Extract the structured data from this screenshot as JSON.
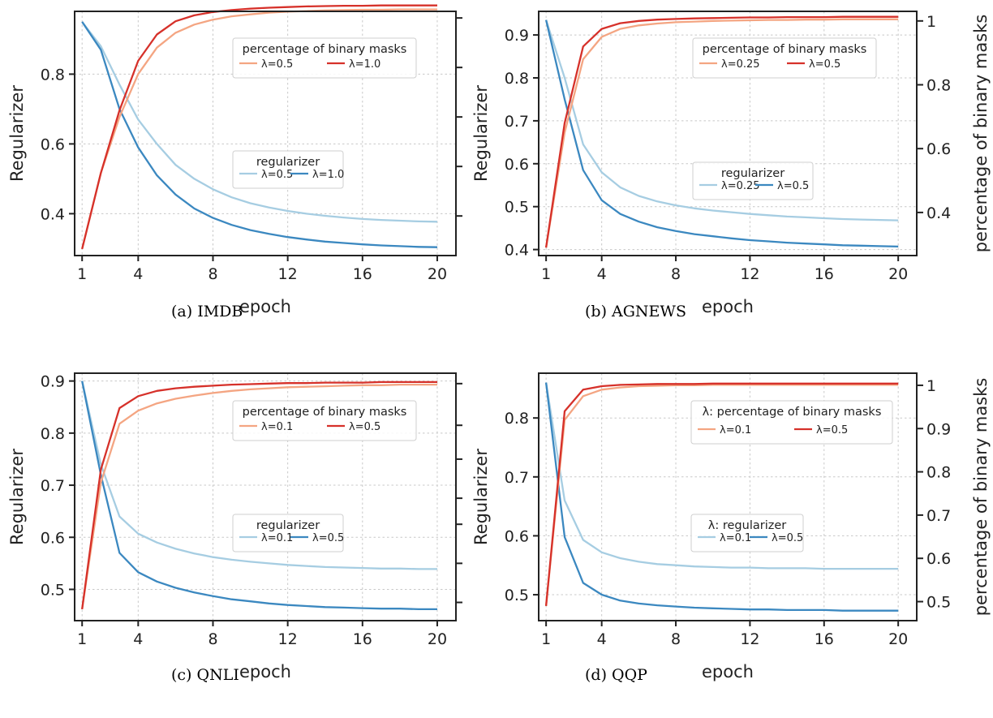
{
  "colors": {
    "reg_light": "#a6cde2",
    "reg_dark": "#3b88c0",
    "mask_light": "#f4a582",
    "mask_dark": "#d6312a"
  },
  "chart_data": [
    {
      "type": "line",
      "caption": "(a)  IMDB",
      "xlabel": "epoch",
      "ylabel": "Regularizer",
      "y2label": "",
      "xlim": [
        0.6,
        21
      ],
      "ylim": [
        0.28,
        0.98
      ],
      "y2lim": [
        0.28,
        1.02
      ],
      "x_ticks": [
        1,
        4,
        8,
        12,
        16,
        20
      ],
      "y_ticks": [
        0.4,
        0.6,
        0.8
      ],
      "y2_ticks": [
        0.4,
        0.55,
        0.7,
        0.85,
        1.0
      ],
      "y2_ticks_labeled": false,
      "x": [
        1,
        2,
        3,
        4,
        5,
        6,
        7,
        8,
        9,
        10,
        11,
        12,
        13,
        14,
        15,
        16,
        17,
        18,
        19,
        20
      ],
      "series": [
        {
          "name": "λ=0.5",
          "axis": "left",
          "color_key": "reg_light",
          "values": [
            0.95,
            0.88,
            0.77,
            0.67,
            0.6,
            0.54,
            0.5,
            0.47,
            0.447,
            0.43,
            0.418,
            0.408,
            0.4,
            0.394,
            0.389,
            0.385,
            0.382,
            0.38,
            0.378,
            0.377
          ]
        },
        {
          "name": "λ=1.0",
          "axis": "left",
          "color_key": "reg_dark",
          "values": [
            0.95,
            0.87,
            0.7,
            0.59,
            0.51,
            0.455,
            0.415,
            0.388,
            0.368,
            0.353,
            0.342,
            0.333,
            0.326,
            0.32,
            0.316,
            0.312,
            0.309,
            0.307,
            0.305,
            0.304
          ]
        },
        {
          "name": "λ=0.5",
          "axis": "right",
          "color_key": "mask_light",
          "values": [
            0.3,
            0.53,
            0.7,
            0.83,
            0.91,
            0.955,
            0.98,
            0.995,
            1.005,
            1.011,
            1.016,
            1.019,
            1.021,
            1.023,
            1.024,
            1.025,
            1.025,
            1.026,
            1.026,
            1.026
          ]
        },
        {
          "name": "λ=1.0",
          "axis": "right",
          "color_key": "mask_dark",
          "values": [
            0.3,
            0.53,
            0.72,
            0.87,
            0.95,
            0.99,
            1.008,
            1.018,
            1.024,
            1.028,
            1.031,
            1.033,
            1.035,
            1.036,
            1.037,
            1.037,
            1.038,
            1.038,
            1.038,
            1.038
          ]
        }
      ],
      "legends": [
        {
          "title": "percentage of binary masks",
          "entries": [
            "λ=0.5",
            "λ=1.0"
          ],
          "series_index": [
            2,
            3
          ]
        },
        {
          "title": "regularizer",
          "entries": [
            "λ=0.5",
            "λ=1.0"
          ],
          "series_index": [
            0,
            1
          ]
        }
      ]
    },
    {
      "type": "line",
      "caption": "(b)  AGNEWS",
      "xlabel": "epoch",
      "ylabel": "Regularizer",
      "y2label": "percentage of binary masks",
      "xlim": [
        0.6,
        21
      ],
      "ylim": [
        0.386,
        0.955
      ],
      "y2lim": [
        0.265,
        1.03
      ],
      "x_ticks": [
        1,
        4,
        8,
        12,
        16,
        20
      ],
      "y_ticks": [
        0.4,
        0.5,
        0.6,
        0.7,
        0.8,
        0.9
      ],
      "y2_ticks": [
        0.4,
        0.6,
        0.8,
        1.0
      ],
      "y2_ticks_labeled": true,
      "x": [
        1,
        2,
        3,
        4,
        5,
        6,
        7,
        8,
        9,
        10,
        11,
        12,
        13,
        14,
        15,
        16,
        17,
        18,
        19,
        20
      ],
      "series": [
        {
          "name": "λ=0.25",
          "axis": "left",
          "color_key": "reg_light",
          "values": [
            0.935,
            0.8,
            0.645,
            0.58,
            0.545,
            0.525,
            0.512,
            0.503,
            0.496,
            0.491,
            0.487,
            0.483,
            0.48,
            0.477,
            0.475,
            0.473,
            0.471,
            0.47,
            0.469,
            0.468
          ]
        },
        {
          "name": "λ=0.5",
          "axis": "left",
          "color_key": "reg_dark",
          "values": [
            0.935,
            0.75,
            0.585,
            0.515,
            0.483,
            0.465,
            0.452,
            0.443,
            0.436,
            0.431,
            0.426,
            0.422,
            0.419,
            0.416,
            0.414,
            0.412,
            0.41,
            0.409,
            0.408,
            0.407
          ]
        },
        {
          "name": "λ=0.25",
          "axis": "right",
          "color_key": "mask_light",
          "values": [
            0.29,
            0.65,
            0.88,
            0.95,
            0.975,
            0.986,
            0.992,
            0.996,
            0.998,
            1.0,
            1.001,
            1.002,
            1.003,
            1.003,
            1.004,
            1.004,
            1.005,
            1.005,
            1.005,
            1.005
          ]
        },
        {
          "name": "λ=0.5",
          "axis": "right",
          "color_key": "mask_dark",
          "values": [
            0.29,
            0.68,
            0.92,
            0.975,
            0.993,
            1.0,
            1.004,
            1.006,
            1.008,
            1.009,
            1.01,
            1.011,
            1.011,
            1.012,
            1.012,
            1.012,
            1.013,
            1.013,
            1.013,
            1.013
          ]
        }
      ],
      "legends": [
        {
          "title": "percentage of binary masks",
          "entries": [
            "λ=0.25",
            "λ=0.5"
          ],
          "series_index": [
            2,
            3
          ]
        },
        {
          "title": "regularizer",
          "entries": [
            "λ=0.25",
            "λ=0.5"
          ],
          "series_index": [
            0,
            1
          ]
        }
      ]
    },
    {
      "type": "line",
      "caption": "(c)  QNLI",
      "xlabel": "epoch",
      "ylabel": "Regularizer",
      "y2label": "",
      "xlim": [
        0.6,
        21
      ],
      "ylim": [
        0.44,
        0.915
      ],
      "y2lim": [
        0.44,
        0.915
      ],
      "x_ticks": [
        1,
        4,
        8,
        12,
        16,
        20
      ],
      "y_ticks": [
        0.5,
        0.6,
        0.7,
        0.8,
        0.9
      ],
      "y2_ticks": [
        0.475,
        0.55,
        0.625,
        0.675,
        0.75,
        0.815,
        0.895
      ],
      "y2_ticks_labeled": false,
      "x": [
        1,
        2,
        3,
        4,
        5,
        6,
        7,
        8,
        9,
        10,
        11,
        12,
        13,
        14,
        15,
        16,
        17,
        18,
        19,
        20
      ],
      "series": [
        {
          "name": "λ=0.1",
          "axis": "left",
          "color_key": "reg_light",
          "values": [
            0.9,
            0.74,
            0.64,
            0.607,
            0.59,
            0.578,
            0.569,
            0.562,
            0.557,
            0.553,
            0.55,
            0.547,
            0.545,
            0.543,
            0.542,
            0.541,
            0.54,
            0.54,
            0.539,
            0.539
          ]
        },
        {
          "name": "λ=0.5",
          "axis": "left",
          "color_key": "reg_dark",
          "values": [
            0.9,
            0.72,
            0.57,
            0.533,
            0.515,
            0.503,
            0.494,
            0.487,
            0.481,
            0.477,
            0.473,
            0.47,
            0.468,
            0.466,
            0.465,
            0.464,
            0.463,
            0.463,
            0.462,
            0.462
          ]
        },
        {
          "name": "λ=0.1",
          "axis": "right",
          "color_key": "mask_light",
          "values": [
            0.462,
            0.705,
            0.818,
            0.843,
            0.857,
            0.866,
            0.872,
            0.877,
            0.881,
            0.884,
            0.886,
            0.888,
            0.889,
            0.89,
            0.891,
            0.892,
            0.892,
            0.893,
            0.893,
            0.893
          ]
        },
        {
          "name": "λ=0.5",
          "axis": "right",
          "color_key": "mask_dark",
          "values": [
            0.462,
            0.73,
            0.848,
            0.871,
            0.881,
            0.886,
            0.889,
            0.891,
            0.893,
            0.894,
            0.895,
            0.896,
            0.896,
            0.897,
            0.897,
            0.897,
            0.898,
            0.898,
            0.898,
            0.898
          ]
        }
      ],
      "legends": [
        {
          "title": "percentage of binary masks",
          "entries": [
            "λ=0.1",
            "λ=0.5"
          ],
          "series_index": [
            2,
            3
          ]
        },
        {
          "title": "regularizer",
          "entries": [
            "λ=0.1",
            "λ=0.5"
          ],
          "series_index": [
            0,
            1
          ]
        }
      ]
    },
    {
      "type": "line",
      "caption": "(d)  QQP",
      "xlabel": "epoch",
      "ylabel": "Regularizer",
      "y2label": "percentage of binary masks",
      "xlim": [
        0.6,
        21
      ],
      "ylim": [
        0.456,
        0.876
      ],
      "y2lim": [
        0.456,
        1.028
      ],
      "x_ticks": [
        1,
        4,
        8,
        12,
        16,
        20
      ],
      "y_ticks": [
        0.5,
        0.6,
        0.7,
        0.8
      ],
      "y2_ticks": [
        0.5,
        0.6,
        0.7,
        0.8,
        0.9,
        1.0
      ],
      "y2_ticks_labeled": true,
      "x": [
        1,
        2,
        3,
        4,
        5,
        6,
        7,
        8,
        9,
        10,
        11,
        12,
        13,
        14,
        15,
        16,
        17,
        18,
        19,
        20
      ],
      "series": [
        {
          "name": "λ=0.1",
          "axis": "left",
          "color_key": "reg_light",
          "values": [
            0.86,
            0.66,
            0.593,
            0.572,
            0.562,
            0.556,
            0.552,
            0.55,
            0.548,
            0.547,
            0.546,
            0.546,
            0.545,
            0.545,
            0.545,
            0.544,
            0.544,
            0.544,
            0.544,
            0.544
          ]
        },
        {
          "name": "λ=0.5",
          "axis": "left",
          "color_key": "reg_dark",
          "values": [
            0.86,
            0.598,
            0.52,
            0.5,
            0.49,
            0.485,
            0.482,
            0.48,
            0.478,
            0.477,
            0.476,
            0.475,
            0.475,
            0.474,
            0.474,
            0.474,
            0.473,
            0.473,
            0.473,
            0.473
          ]
        },
        {
          "name": "λ=0.1",
          "axis": "right",
          "color_key": "mask_light",
          "values": [
            0.49,
            0.92,
            0.975,
            0.99,
            0.995,
            0.998,
            0.999,
            1.0,
            1.0,
            1.001,
            1.001,
            1.001,
            1.001,
            1.001,
            1.001,
            1.001,
            1.001,
            1.001,
            1.001,
            1.001
          ]
        },
        {
          "name": "λ=0.5",
          "axis": "right",
          "color_key": "mask_dark",
          "values": [
            0.49,
            0.94,
            0.99,
            0.998,
            1.001,
            1.002,
            1.003,
            1.003,
            1.003,
            1.004,
            1.004,
            1.004,
            1.004,
            1.004,
            1.004,
            1.004,
            1.004,
            1.004,
            1.004,
            1.004
          ]
        }
      ],
      "legends": [
        {
          "title": "λ: percentage of binary masks",
          "entries": [
            "λ=0.1",
            "λ=0.5"
          ],
          "series_index": [
            2,
            3
          ]
        },
        {
          "title": "λ: regularizer",
          "entries": [
            "λ=0.1",
            "λ=0.5"
          ],
          "series_index": [
            0,
            1
          ]
        }
      ]
    }
  ]
}
